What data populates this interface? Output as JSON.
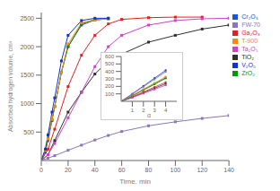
{
  "chart_data": [
    {
      "type": "line",
      "xlabel": "Time, min",
      "ylabel": "Absorbed hydrogen volume, cm³",
      "xlim": [
        0,
        140
      ],
      "ylim": [
        0,
        2600
      ],
      "xticks": [
        0,
        20,
        40,
        60,
        80,
        100,
        120,
        140
      ],
      "yticks": [
        500,
        1000,
        1500,
        2000,
        2500
      ],
      "grid": false,
      "legend": "upper right",
      "marker": "square",
      "series": [
        {
          "name": "TiO₂",
          "color": "#303030",
          "x": [
            0,
            5,
            10,
            20,
            30,
            40,
            50,
            60,
            80,
            100,
            120,
            140
          ],
          "values": [
            0,
            100,
            350,
            850,
            1200,
            1520,
            1750,
            1870,
            2080,
            2200,
            2310,
            2380
          ]
        },
        {
          "name": "Ga₂O₃",
          "color": "#dd2222",
          "x": [
            0,
            5,
            10,
            20,
            30,
            40,
            50,
            60,
            80,
            100,
            120
          ],
          "values": [
            0,
            200,
            550,
            1300,
            1850,
            2200,
            2400,
            2480,
            2510,
            2520,
            2520
          ]
        },
        {
          "name": "Cr₂O₃",
          "color": "#2255cc",
          "x": [
            0,
            3,
            5,
            8,
            10,
            15,
            20,
            30,
            40,
            50
          ],
          "values": [
            0,
            150,
            350,
            700,
            950,
            1550,
            2000,
            2380,
            2470,
            2490
          ]
        },
        {
          "name": "Ta₂O₅",
          "color": "#cc44cc",
          "x": [
            0,
            5,
            10,
            20,
            30,
            40,
            50,
            60,
            80,
            100,
            120,
            140
          ],
          "values": [
            0,
            100,
            300,
            750,
            1200,
            1650,
            2000,
            2200,
            2380,
            2460,
            2490,
            2500
          ]
        },
        {
          "name": "ZrO₂",
          "color": "#009900",
          "x": [
            0,
            3,
            5,
            8,
            10,
            15,
            20,
            30,
            40,
            50
          ],
          "values": [
            0,
            180,
            380,
            720,
            950,
            1550,
            2000,
            2400,
            2480,
            2500
          ]
        },
        {
          "name": "T-900",
          "color": "#ff8800",
          "x": [
            0,
            3,
            5,
            8,
            10,
            15,
            20,
            30,
            40,
            50
          ],
          "values": [
            0,
            180,
            380,
            720,
            950,
            1550,
            2050,
            2420,
            2470,
            2490
          ]
        },
        {
          "name": "V₂O₅",
          "color": "#1133cc",
          "x": [
            0,
            3,
            5,
            8,
            10,
            15,
            20,
            30,
            40,
            50
          ],
          "values": [
            0,
            200,
            450,
            850,
            1100,
            1750,
            2200,
            2460,
            2500,
            2500
          ]
        },
        {
          "name": "FW-70",
          "color": "#8877bb",
          "x": [
            0,
            5,
            10,
            20,
            30,
            40,
            50,
            60,
            80,
            100,
            120,
            140
          ],
          "values": [
            0,
            40,
            85,
            180,
            270,
            360,
            440,
            510,
            610,
            680,
            740,
            790
          ]
        }
      ]
    },
    {
      "type": "line",
      "xlabel": "α",
      "xlim": [
        0,
        5
      ],
      "ylim": [
        0,
        600
      ],
      "xticks": [
        1,
        2,
        3,
        4
      ],
      "yticks": [
        100,
        200,
        300,
        400,
        500,
        600
      ],
      "marker": "square",
      "annotations": [
        {
          "text": "α",
          "x": 1.0,
          "y": 10,
          "color": "gray"
        }
      ],
      "series": [
        {
          "color": "#303030",
          "x": [
            0,
            1,
            2,
            3,
            4
          ],
          "values": [
            0,
            55,
            115,
            175,
            235
          ]
        },
        {
          "color": "#dd2222",
          "x": [
            0,
            1,
            2,
            3,
            4
          ],
          "values": [
            0,
            60,
            125,
            190,
            255
          ]
        },
        {
          "color": "#2255cc",
          "x": [
            0,
            1,
            2,
            3,
            4
          ],
          "values": [
            0,
            75,
            155,
            235,
            315
          ]
        },
        {
          "color": "#cc44cc",
          "x": [
            0,
            1,
            2,
            3,
            4
          ],
          "values": [
            0,
            50,
            105,
            160,
            215
          ]
        },
        {
          "color": "#009900",
          "x": [
            0,
            1,
            2,
            3,
            4
          ],
          "values": [
            0,
            72,
            150,
            228,
            308
          ]
        },
        {
          "color": "#ff8800",
          "x": [
            0,
            1,
            2,
            3,
            4
          ],
          "values": [
            0,
            80,
            162,
            245,
            328
          ]
        },
        {
          "color": "#1133cc",
          "x": [
            0,
            1,
            2,
            3,
            4
          ],
          "values": [
            0,
            100,
            205,
            310,
            415
          ]
        },
        {
          "color": "#8877bb",
          "x": [
            0,
            1,
            2,
            3,
            4
          ],
          "values": [
            0,
            95,
            195,
            295,
            395
          ]
        }
      ]
    }
  ]
}
